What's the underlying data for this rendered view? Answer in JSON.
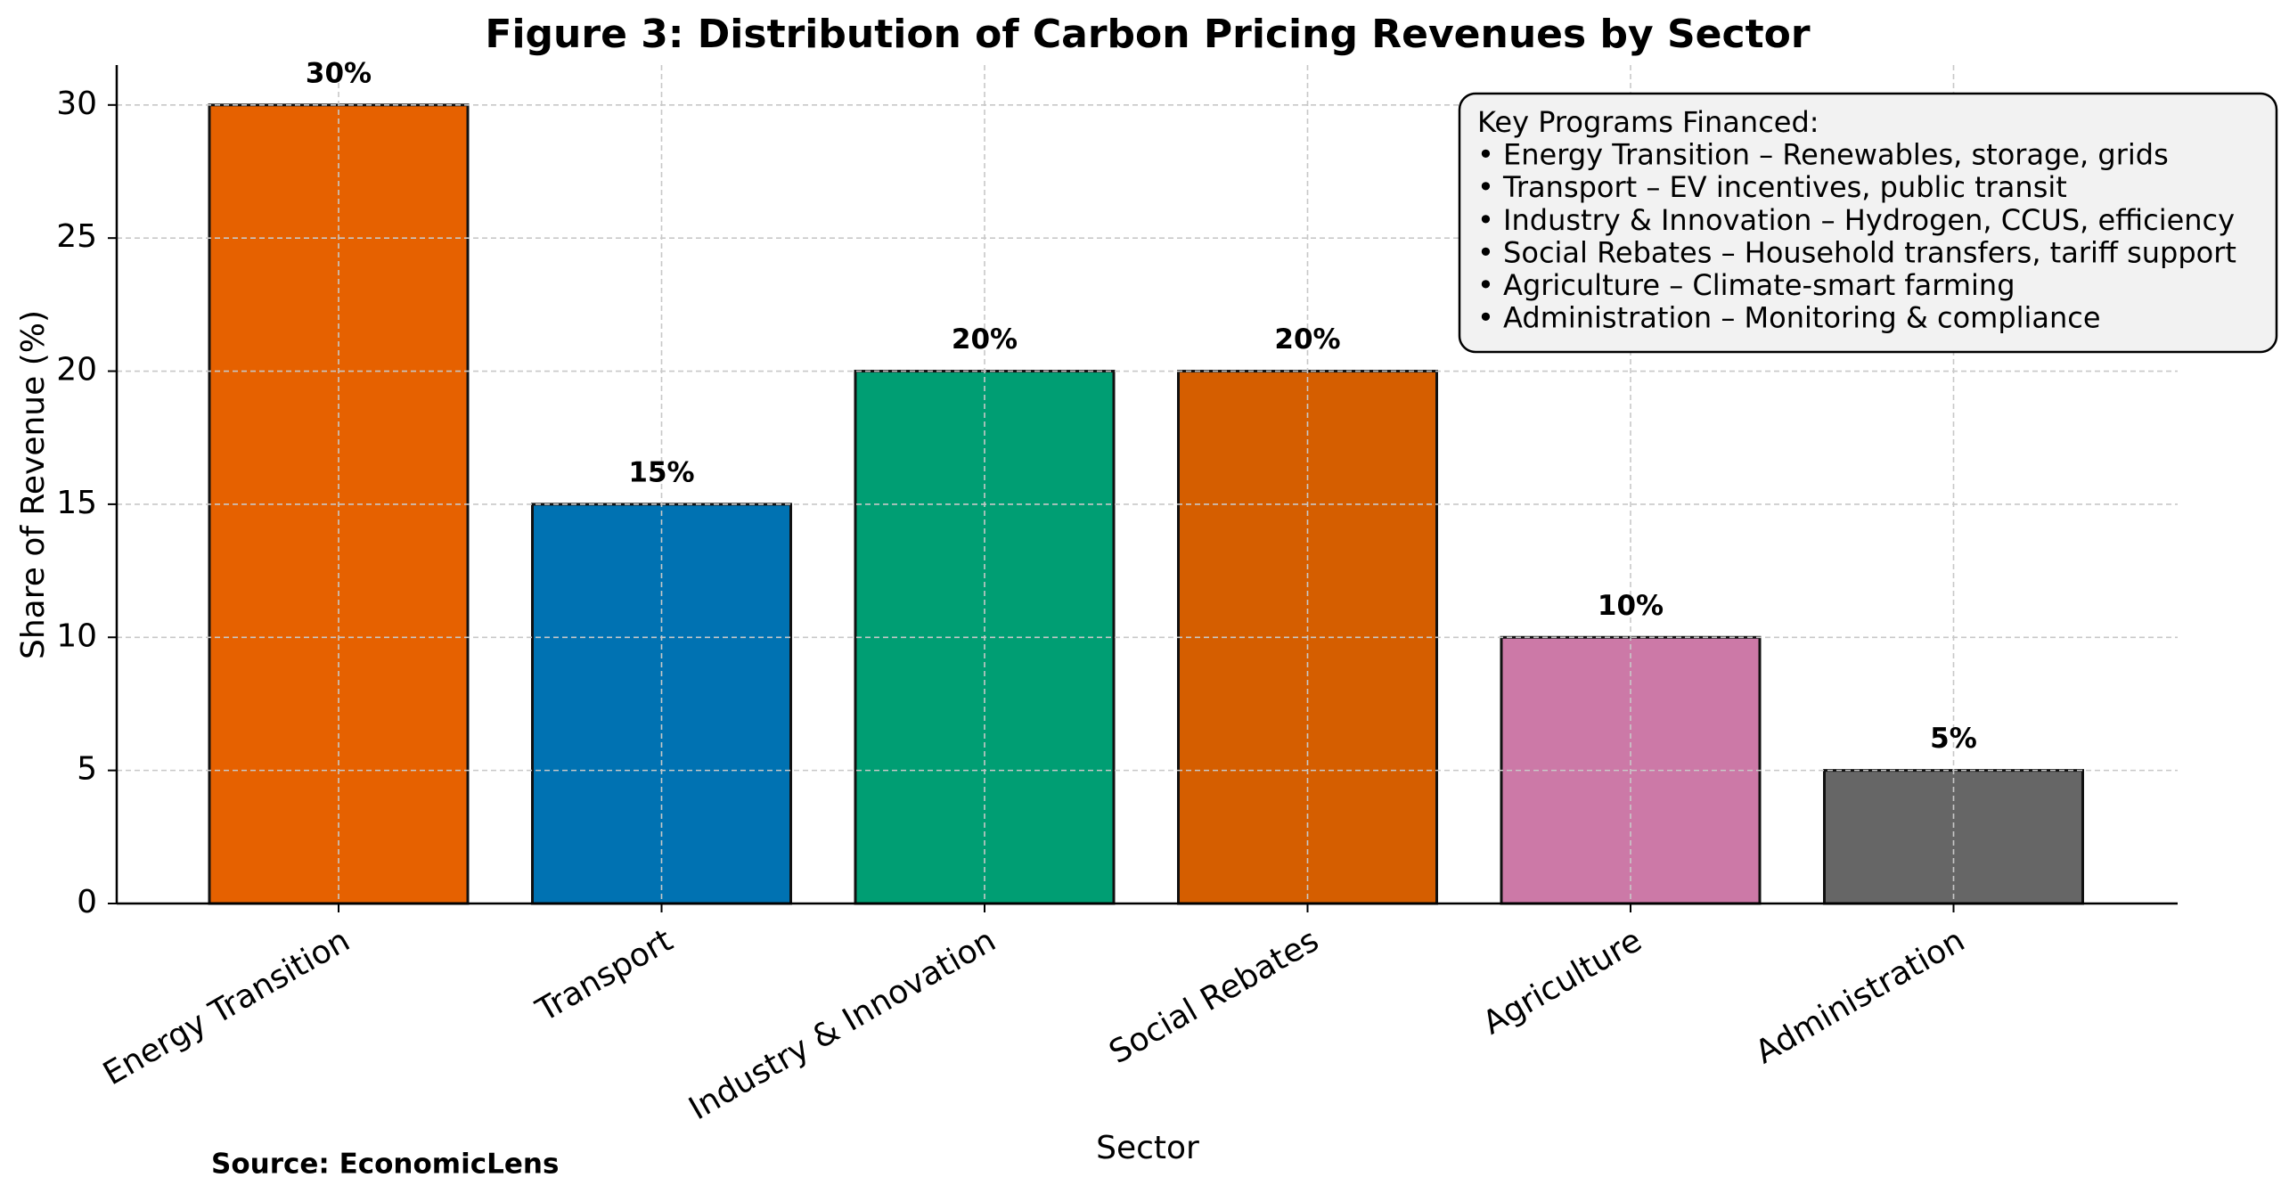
{
  "chart_data": {
    "type": "bar",
    "title": "Figure 3: Distribution of Carbon Pricing Revenues by Sector",
    "x_label": "Sector",
    "y_label": "Share of Revenue (%)",
    "categories": [
      "Energy Transition",
      "Transport",
      "Industry & Innovation",
      "Social Rebates",
      "Agriculture",
      "Administration"
    ],
    "values": [
      30,
      15,
      20,
      20,
      10,
      5
    ],
    "value_labels": [
      "30%",
      "15%",
      "20%",
      "20%",
      "10%",
      "5%"
    ],
    "colors": [
      "#e66100",
      "#0072b2",
      "#009e73",
      "#d55e00",
      "#cc79a7",
      "#666666"
    ],
    "ylim": [
      0,
      31.5
    ],
    "yticks": [
      0,
      5,
      10,
      15,
      20,
      25,
      30
    ],
    "grid": true,
    "annotation": {
      "title": "Key Programs Financed:",
      "lines": [
        "• Energy Transition – Renewables, storage, grids",
        "• Transport – EV incentives, public transit",
        "• Industry & Innovation – Hydrogen, CCUS, efficiency",
        "• Social Rebates – Household transfers, tariff support",
        "• Agriculture – Climate-smart farming",
        "• Administration – Monitoring & compliance"
      ]
    },
    "source": "Source: EconomicLens"
  }
}
